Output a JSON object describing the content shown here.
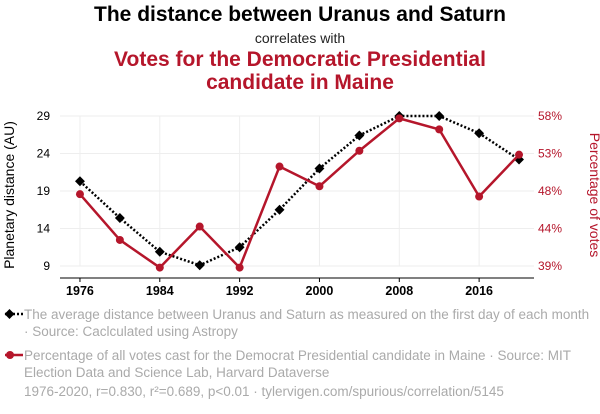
{
  "header": {
    "title": "The distance between Uranus and Saturn",
    "subtitle": "correlates with",
    "title2_line1": "Votes for the Democratic Presidential",
    "title2_line2": "candidate in Maine"
  },
  "colors": {
    "series1": "#000000",
    "series2": "#b5162b",
    "grid": "#eeeeee",
    "muted": "#aaaaaa"
  },
  "chart_data": {
    "type": "line",
    "x": [
      1976,
      1980,
      1984,
      1988,
      1992,
      1996,
      2000,
      2004,
      2008,
      2012,
      2016,
      2020
    ],
    "xlim": [
      1974,
      2021.5
    ],
    "xticks": [
      "1976",
      "1984",
      "1992",
      "2000",
      "2008",
      "2016"
    ],
    "xtick_values": [
      1976,
      1984,
      1992,
      2000,
      2008,
      2016
    ],
    "ylabel_left": "Planetary distance (AU)",
    "ylabel_right": "Percentage of votes",
    "left_axis": {
      "ylim": [
        9,
        29
      ],
      "ticks": [
        "9",
        "14",
        "19",
        "24",
        "29"
      ],
      "tick_values": [
        9,
        14,
        19,
        24,
        29
      ]
    },
    "right_axis": {
      "ylim": [
        39,
        58
      ],
      "ticks": [
        "39%",
        "44%",
        "48%",
        "53%",
        "58%"
      ],
      "tick_values": [
        39,
        43.75,
        48.5,
        53.25,
        58
      ]
    },
    "grid": true,
    "series": [
      {
        "axis": "left",
        "marker": "diamond",
        "dash": true,
        "values": [
          20.3,
          15.4,
          10.9,
          9.1,
          11.5,
          16.5,
          22.0,
          26.4,
          29.0,
          29.0,
          26.7,
          23.2
        ]
      },
      {
        "axis": "right",
        "marker": "circle",
        "dash": false,
        "values": [
          48.1,
          42.3,
          38.8,
          44.0,
          38.8,
          51.6,
          49.1,
          53.6,
          57.7,
          56.3,
          47.8,
          53.1
        ]
      }
    ]
  },
  "legend": {
    "series1_text": "The average distance between Uranus and Saturn as measured on the first day of each month · Source: Caclculated using Astropy",
    "series2_text": "Percentage of all votes cast for the Democrat Presidential candidate in Maine · Source: MIT Election Data and Science Lab, Harvard Dataverse"
  },
  "footer": "1976-2020, r=0.830, r²=0.689, p<0.01 · tylervigen.com/spurious/correlation/5145"
}
